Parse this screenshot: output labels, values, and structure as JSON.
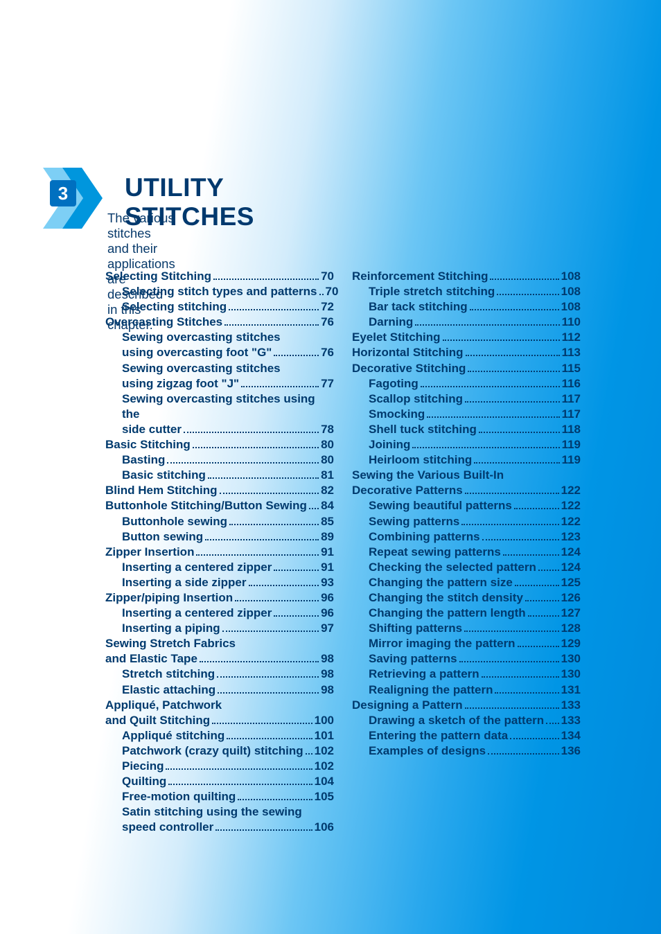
{
  "chapter_number": "3",
  "chapter_title": "UTILITY STITCHES",
  "chapter_subtitle": "The various stitches and their applications are described in this chapter.",
  "colors": {
    "text": "#003a6e",
    "chip_bg": "#0070c0",
    "chip_fg": "#ffffff",
    "chevron_light": "#7dcff5",
    "chevron_dark": "#0096dd"
  },
  "typography": {
    "title_fontsize": 37,
    "subtitle_fontsize": 18.5,
    "toc_fontsize": 17,
    "font_family": "Optima / Segoe UI / sans-serif",
    "weight": 700
  },
  "left_column": [
    {
      "type": "item",
      "level": 0,
      "label": "Selecting Stitching",
      "page": "70"
    },
    {
      "type": "item",
      "level": 1,
      "label": "Selecting stitch types and patterns",
      "page": "70"
    },
    {
      "type": "item",
      "level": 1,
      "label": "Selecting stitching",
      "page": "72"
    },
    {
      "type": "item",
      "level": 0,
      "label": "Overcasting Stitches",
      "page": "76"
    },
    {
      "type": "wrap",
      "level": 1,
      "lines": [
        "Sewing overcasting stitches",
        "using overcasting foot \"G\""
      ],
      "page": "76"
    },
    {
      "type": "wrap",
      "level": 1,
      "lines": [
        "Sewing overcasting stitches",
        "using zigzag foot \"J\""
      ],
      "page": "77"
    },
    {
      "type": "wrap",
      "level": 1,
      "lines": [
        "Sewing overcasting stitches using the",
        "side cutter"
      ],
      "page": "78"
    },
    {
      "type": "item",
      "level": 0,
      "label": "Basic Stitching",
      "page": "80"
    },
    {
      "type": "item",
      "level": 1,
      "label": "Basting",
      "page": "80"
    },
    {
      "type": "item",
      "level": 1,
      "label": "Basic stitching",
      "page": "81"
    },
    {
      "type": "item",
      "level": 0,
      "label": "Blind Hem Stitching",
      "page": "82"
    },
    {
      "type": "item",
      "level": 0,
      "label": "Buttonhole Stitching/Button Sewing",
      "page": "84"
    },
    {
      "type": "item",
      "level": 1,
      "label": "Buttonhole sewing",
      "page": "85"
    },
    {
      "type": "item",
      "level": 1,
      "label": "Button sewing",
      "page": "89"
    },
    {
      "type": "item",
      "level": 0,
      "label": "Zipper Insertion",
      "page": "91"
    },
    {
      "type": "item",
      "level": 1,
      "label": "Inserting a centered zipper",
      "page": "91"
    },
    {
      "type": "item",
      "level": 1,
      "label": "Inserting a side zipper",
      "page": "93"
    },
    {
      "type": "item",
      "level": 0,
      "label": "Zipper/piping Insertion",
      "page": "96"
    },
    {
      "type": "item",
      "level": 1,
      "label": "Inserting a centered zipper",
      "page": "96"
    },
    {
      "type": "item",
      "level": 1,
      "label": "Inserting a piping",
      "page": "97"
    },
    {
      "type": "wrap",
      "level": 0,
      "lines": [
        "Sewing Stretch Fabrics",
        "and Elastic Tape"
      ],
      "page": "98"
    },
    {
      "type": "item",
      "level": 1,
      "label": "Stretch stitching",
      "page": "98"
    },
    {
      "type": "item",
      "level": 1,
      "label": "Elastic attaching",
      "page": "98"
    },
    {
      "type": "wrap",
      "level": 0,
      "lines": [
        "Appliqué, Patchwork",
        "and Quilt Stitching"
      ],
      "page": "100"
    },
    {
      "type": "item",
      "level": 1,
      "label": "Appliqué stitching",
      "page": "101"
    },
    {
      "type": "item",
      "level": 1,
      "label": "Patchwork (crazy quilt) stitching",
      "page": "102"
    },
    {
      "type": "item",
      "level": 1,
      "label": "Piecing",
      "page": "102"
    },
    {
      "type": "item",
      "level": 1,
      "label": "Quilting",
      "page": "104"
    },
    {
      "type": "item",
      "level": 1,
      "label": "Free-motion quilting",
      "page": "105"
    },
    {
      "type": "wrap",
      "level": 1,
      "lines": [
        "Satin stitching using the sewing",
        "speed controller"
      ],
      "page": "106"
    }
  ],
  "right_column": [
    {
      "type": "item",
      "level": 0,
      "label": "Reinforcement Stitching",
      "page": "108"
    },
    {
      "type": "item",
      "level": 1,
      "label": "Triple stretch stitching",
      "page": "108"
    },
    {
      "type": "item",
      "level": 1,
      "label": "Bar tack stitching",
      "page": "108"
    },
    {
      "type": "item",
      "level": 1,
      "label": "Darning",
      "page": "110"
    },
    {
      "type": "item",
      "level": 0,
      "label": "Eyelet Stitching",
      "page": "112"
    },
    {
      "type": "item",
      "level": 0,
      "label": "Horizontal Stitching",
      "page": "113"
    },
    {
      "type": "item",
      "level": 0,
      "label": "Decorative Stitching",
      "page": "115"
    },
    {
      "type": "item",
      "level": 1,
      "label": "Fagoting",
      "page": "116"
    },
    {
      "type": "item",
      "level": 1,
      "label": "Scallop stitching",
      "page": "117"
    },
    {
      "type": "item",
      "level": 1,
      "label": "Smocking",
      "page": "117"
    },
    {
      "type": "item",
      "level": 1,
      "label": "Shell tuck stitching",
      "page": "118"
    },
    {
      "type": "item",
      "level": 1,
      "label": "Joining",
      "page": "119"
    },
    {
      "type": "item",
      "level": 1,
      "label": "Heirloom stitching",
      "page": "119"
    },
    {
      "type": "wrap",
      "level": 0,
      "lines": [
        "Sewing the Various Built-In",
        "Decorative Patterns"
      ],
      "page": "122"
    },
    {
      "type": "item",
      "level": 1,
      "label": "Sewing beautiful patterns",
      "page": "122"
    },
    {
      "type": "item",
      "level": 1,
      "label": "Sewing patterns",
      "page": "122"
    },
    {
      "type": "item",
      "level": 1,
      "label": "Combining patterns",
      "page": "123"
    },
    {
      "type": "item",
      "level": 1,
      "label": "Repeat sewing patterns",
      "page": "124"
    },
    {
      "type": "item",
      "level": 1,
      "label": "Checking the selected pattern",
      "page": "124"
    },
    {
      "type": "item",
      "level": 1,
      "label": "Changing the pattern size",
      "page": "125"
    },
    {
      "type": "item",
      "level": 1,
      "label": "Changing the stitch density",
      "page": "126"
    },
    {
      "type": "item",
      "level": 1,
      "label": "Changing the pattern length",
      "page": "127"
    },
    {
      "type": "item",
      "level": 1,
      "label": "Shifting patterns",
      "page": "128"
    },
    {
      "type": "item",
      "level": 1,
      "label": "Mirror imaging the pattern",
      "page": "129"
    },
    {
      "type": "item",
      "level": 1,
      "label": "Saving patterns",
      "page": "130"
    },
    {
      "type": "item",
      "level": 1,
      "label": "Retrieving a pattern",
      "page": "130"
    },
    {
      "type": "item",
      "level": 1,
      "label": "Realigning the pattern",
      "page": "131"
    },
    {
      "type": "item",
      "level": 0,
      "label": "Designing a Pattern",
      "page": "133"
    },
    {
      "type": "item",
      "level": 1,
      "label": "Drawing a sketch of the pattern",
      "page": "133"
    },
    {
      "type": "item",
      "level": 1,
      "label": "Entering the pattern data",
      "page": "134"
    },
    {
      "type": "item",
      "level": 1,
      "label": "Examples of designs",
      "page": "136"
    }
  ]
}
